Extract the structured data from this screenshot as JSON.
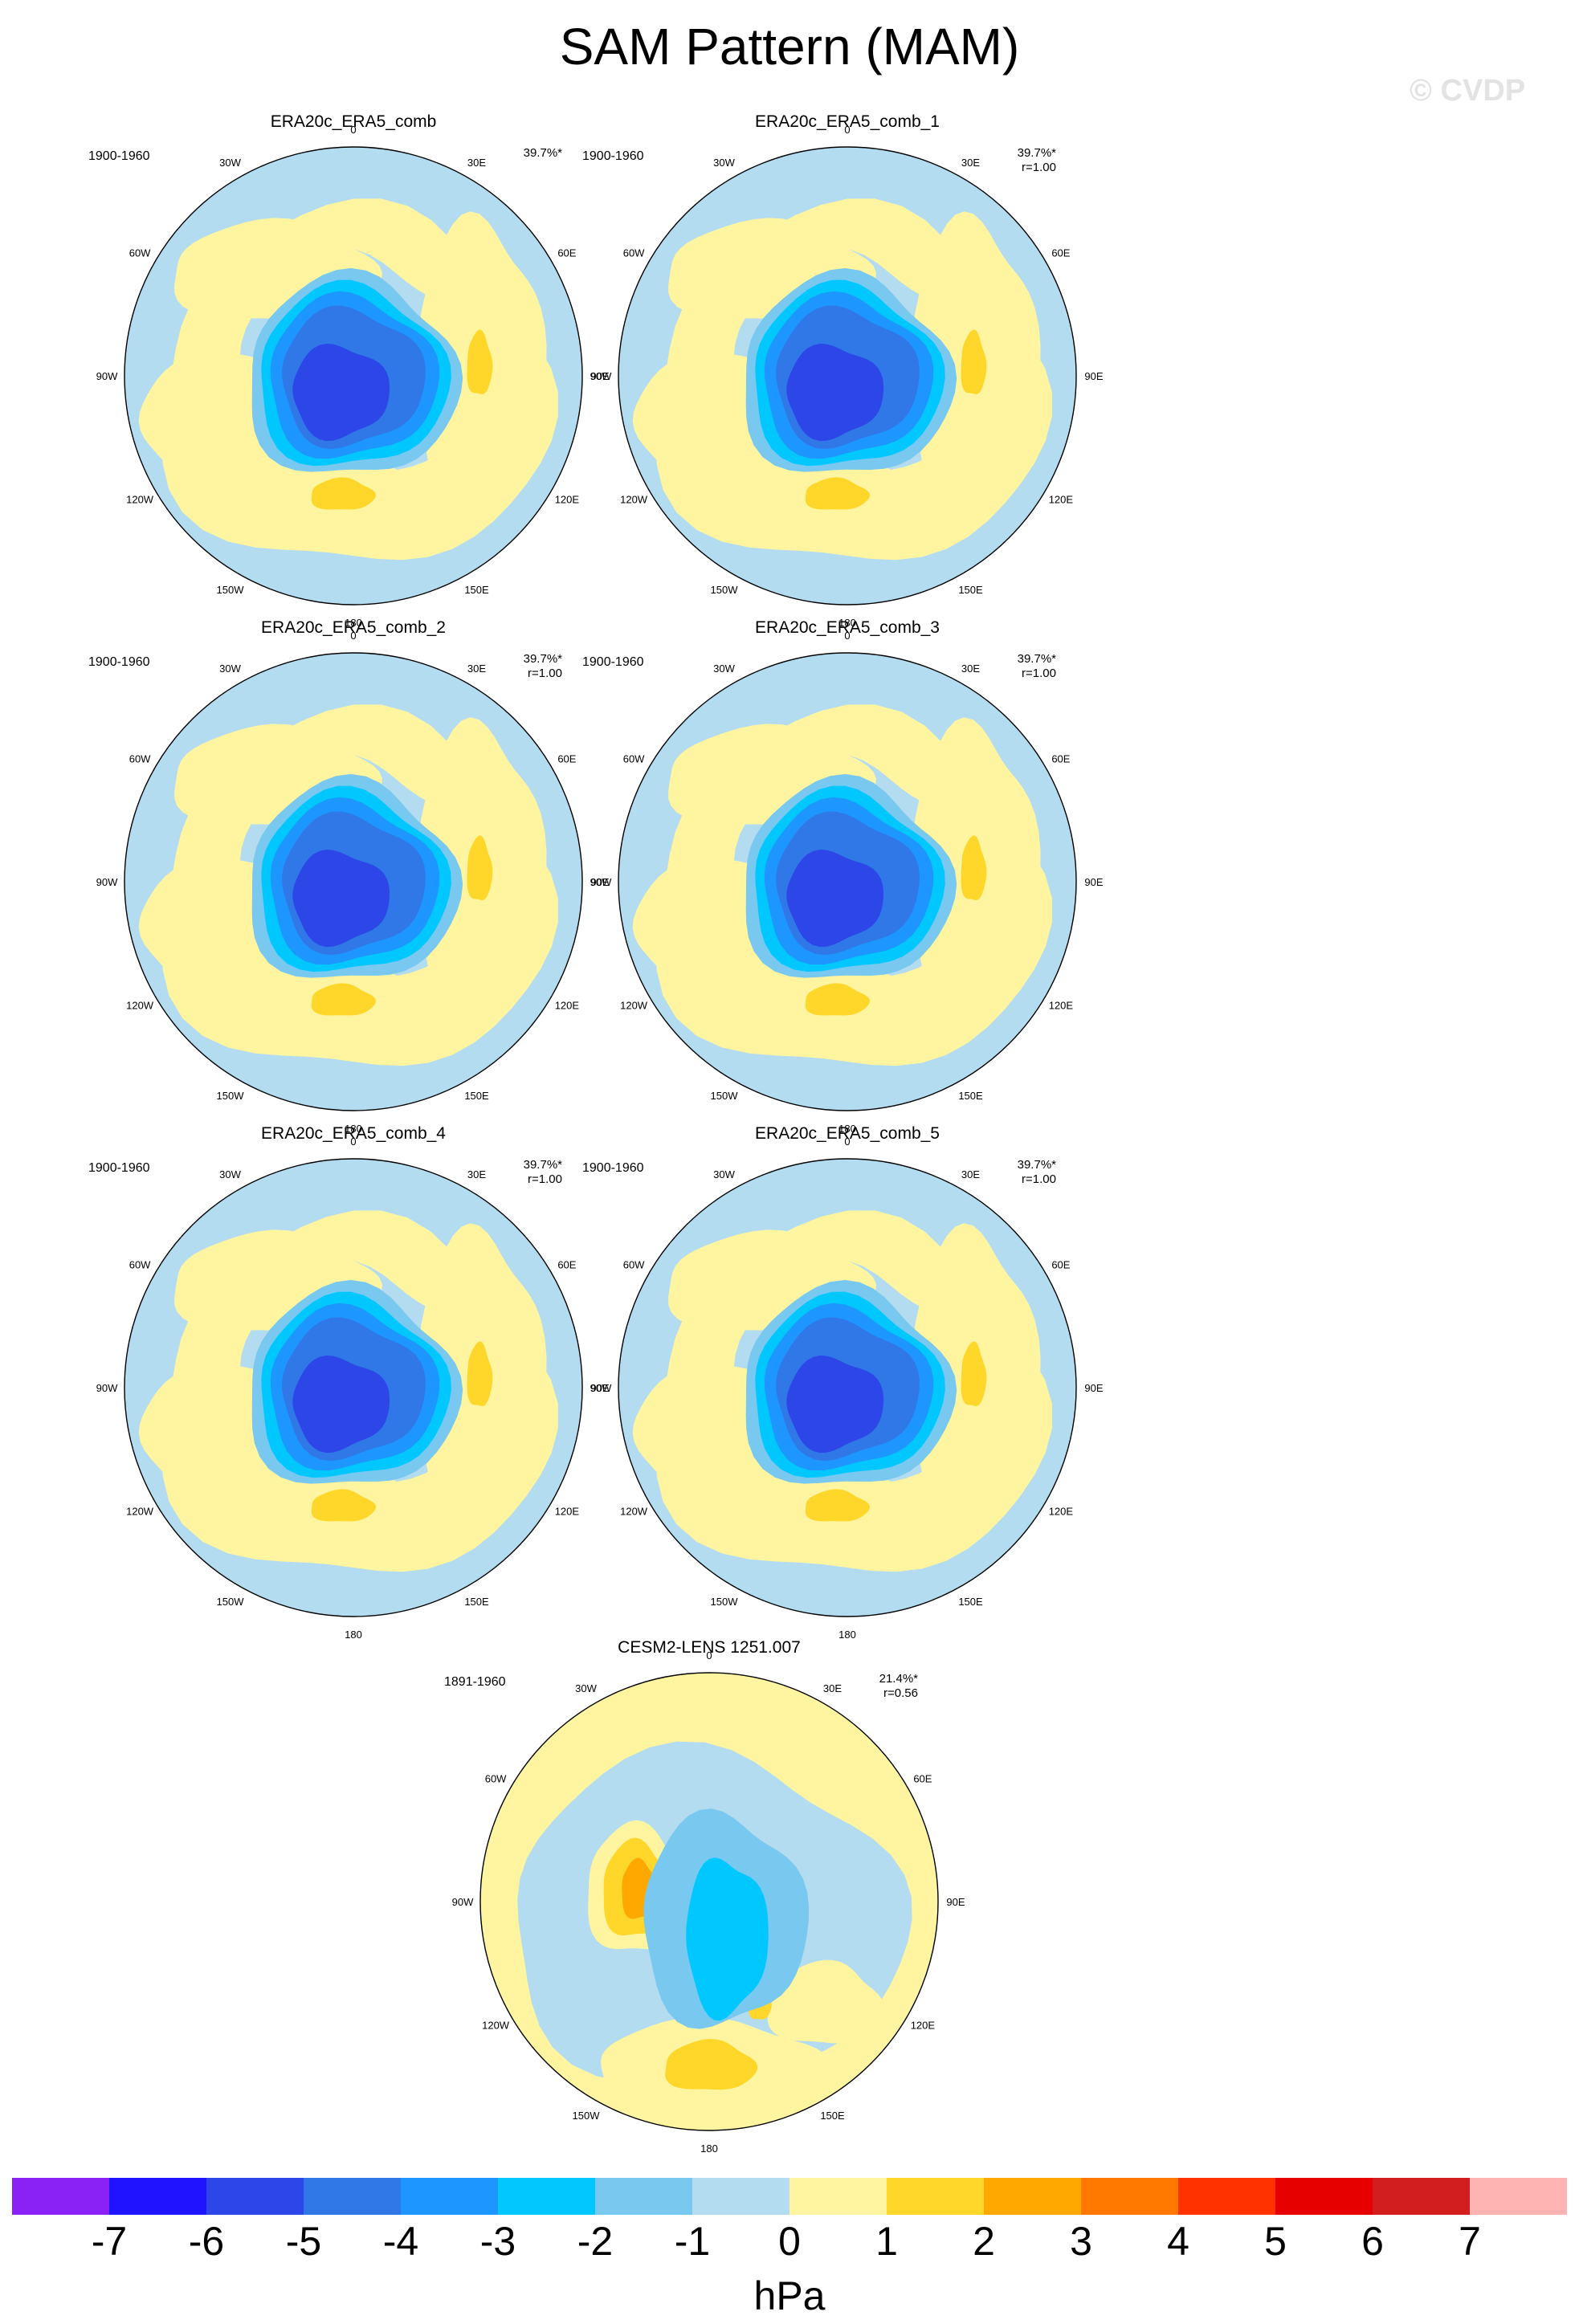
{
  "title": "SAM Pattern (MAM)",
  "watermark": "© CVDP",
  "chart_data": {
    "type": "polar-stereographic contour maps",
    "variable": "Sea level pressure anomaly (SAM EOF pattern)",
    "units": "hPa",
    "region": "Southern Hemisphere (centered on South Pole)",
    "longitude_labels": [
      "0",
      "30E",
      "60E",
      "90E",
      "120E",
      "150E",
      "180",
      "150W",
      "120W",
      "90W",
      "60W",
      "30W"
    ],
    "panels": [
      {
        "name": "ERA20c_ERA5_comb",
        "period": "1900-1960",
        "pct_variance": "39.7%*",
        "pattern_corr": "",
        "min_hpa": -6,
        "max_hpa": 2
      },
      {
        "name": "ERA20c_ERA5_comb_1",
        "period": "1900-1960",
        "pct_variance": "39.7%*",
        "pattern_corr": "r=1.00",
        "min_hpa": -6,
        "max_hpa": 2
      },
      {
        "name": "ERA20c_ERA5_comb_2",
        "period": "1900-1960",
        "pct_variance": "39.7%*",
        "pattern_corr": "r=1.00",
        "min_hpa": -6,
        "max_hpa": 2
      },
      {
        "name": "ERA20c_ERA5_comb_3",
        "period": "1900-1960",
        "pct_variance": "39.7%*",
        "pattern_corr": "r=1.00",
        "min_hpa": -6,
        "max_hpa": 2
      },
      {
        "name": "ERA20c_ERA5_comb_4",
        "period": "1900-1960",
        "pct_variance": "39.7%*",
        "pattern_corr": "r=1.00",
        "min_hpa": -6,
        "max_hpa": 2
      },
      {
        "name": "ERA20c_ERA5_comb_5",
        "period": "1900-1960",
        "pct_variance": "39.7%*",
        "pattern_corr": "r=1.00",
        "min_hpa": -6,
        "max_hpa": 2
      },
      {
        "name": "CESM2-LENS 1251.007",
        "period": "1891-1960",
        "pct_variance": "21.4%*",
        "pattern_corr": "r=0.56",
        "min_hpa": -3,
        "max_hpa": 3
      }
    ],
    "colorbar": {
      "label": "hPa",
      "ticks": [
        "-7",
        "-6",
        "-5",
        "-4",
        "-3",
        "-2",
        "-1",
        "0",
        "1",
        "2",
        "3",
        "4",
        "5",
        "6",
        "7"
      ],
      "colors": [
        "#8b22f5",
        "#1e14ff",
        "#2c46e8",
        "#3078e8",
        "#1e96ff",
        "#00c8ff",
        "#78c8f0",
        "#b4dcf0",
        "#fff5a0",
        "#ffd72a",
        "#ffa800",
        "#ff7800",
        "#ff3200",
        "#e60000",
        "#d21e1e",
        "#ffb4b4"
      ]
    }
  }
}
